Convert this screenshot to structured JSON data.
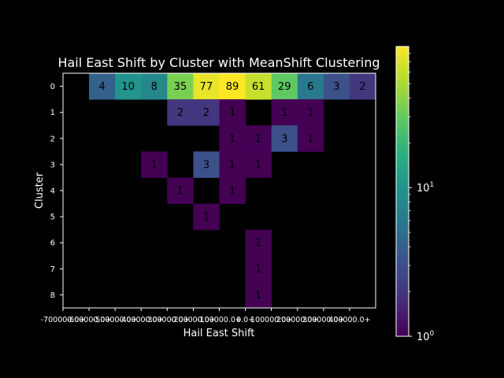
{
  "chart_data": {
    "type": "heatmap",
    "title": "Hail East Shift by Cluster with MeanShift Clustering",
    "xlabel": "Hail East Shift",
    "ylabel": "Cluster",
    "x_tick_labels": [
      "-700000.0+",
      "-600000.0+",
      "-500000.0+",
      "-400000.0+",
      "-300000.0+",
      "-200000.0+",
      "-100000.0+",
      "0.0+",
      "100000.0+",
      "200000.0+",
      "300000.0+",
      "400000.0+"
    ],
    "x_categories": [
      "-700000.0+",
      "-600000.0+",
      "-500000.0+",
      "-400000.0+",
      "-300000.0+",
      "-200000.0+",
      "-100000.0+",
      "0.0+",
      "100000.0+",
      "200000.0+",
      "300000.0+",
      "400000.0+"
    ],
    "y_categories": [
      "0",
      "1",
      "2",
      "3",
      "4",
      "5",
      "6",
      "7",
      "8"
    ],
    "values": [
      [
        null,
        4,
        10,
        8,
        35,
        77,
        89,
        61,
        29,
        6,
        3,
        2
      ],
      [
        null,
        null,
        null,
        null,
        2,
        2,
        1,
        null,
        1,
        1,
        null,
        null
      ],
      [
        null,
        null,
        null,
        null,
        null,
        null,
        1,
        1,
        3,
        1,
        null,
        null
      ],
      [
        null,
        null,
        null,
        1,
        null,
        3,
        1,
        1,
        null,
        null,
        null,
        null
      ],
      [
        null,
        null,
        null,
        null,
        1,
        null,
        1,
        null,
        null,
        null,
        null,
        null
      ],
      [
        null,
        null,
        null,
        null,
        null,
        1,
        null,
        null,
        null,
        null,
        null,
        null
      ],
      [
        null,
        null,
        null,
        null,
        null,
        null,
        null,
        1,
        null,
        null,
        null,
        null
      ],
      [
        null,
        null,
        null,
        null,
        null,
        null,
        null,
        1,
        null,
        null,
        null,
        null
      ],
      [
        null,
        null,
        null,
        null,
        null,
        null,
        null,
        1,
        null,
        null,
        null,
        null
      ]
    ],
    "colorbar": {
      "scale": "log",
      "colormap": "viridis",
      "range": [
        1,
        89
      ],
      "tick_labels": [
        {
          "base": "10",
          "exp": "0",
          "value": 1
        },
        {
          "base": "10",
          "exp": "1",
          "value": 10
        }
      ]
    },
    "grid": false,
    "colors": {
      "background": "#000000",
      "text": "#ffffff",
      "cell_text": "#000000"
    }
  }
}
